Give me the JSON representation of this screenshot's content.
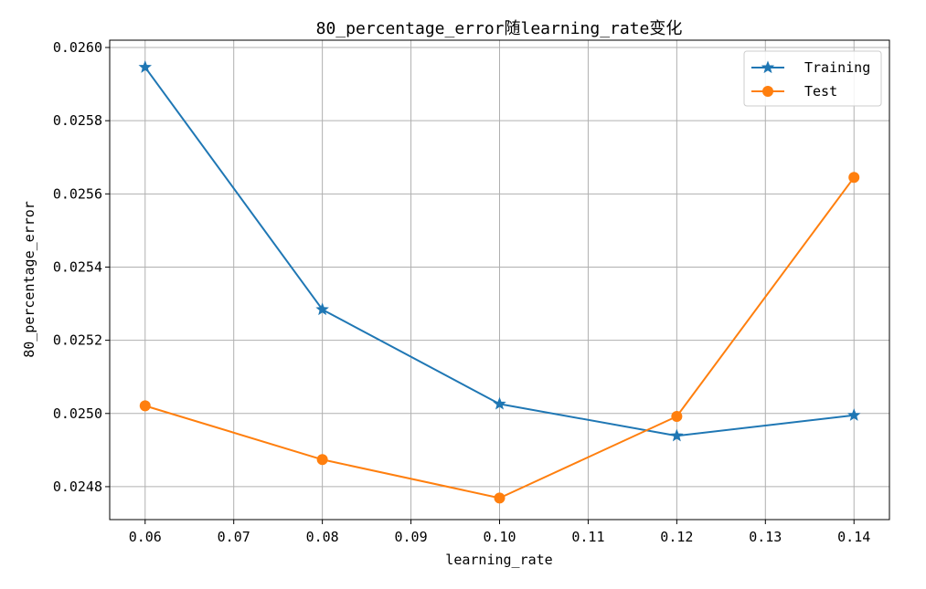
{
  "chart_data": {
    "type": "line",
    "title": "80_percentage_error随learning_rate变化",
    "xlabel": "learning_rate",
    "ylabel": "80_percentage_error",
    "x": [
      0.06,
      0.08,
      0.1,
      0.12,
      0.14
    ],
    "xlim": [
      0.056,
      0.144
    ],
    "ylim": [
      0.02471,
      0.02602
    ],
    "x_ticks": [
      0.06,
      0.07,
      0.08,
      0.09,
      0.1,
      0.11,
      0.12,
      0.13,
      0.14
    ],
    "x_tick_labels": [
      "0.06",
      "0.07",
      "0.08",
      "0.09",
      "0.10",
      "0.11",
      "0.12",
      "0.13",
      "0.14"
    ],
    "y_ticks": [
      0.0248,
      0.025,
      0.0252,
      0.0254,
      0.0256,
      0.0258,
      0.026
    ],
    "y_tick_labels": [
      "0.0248",
      "0.0250",
      "0.0252",
      "0.0254",
      "0.0256",
      "0.0258",
      "0.0260"
    ],
    "grid": true,
    "legend_position": "top-right",
    "series": [
      {
        "name": "Training",
        "color": "#1f77b4",
        "marker": "star",
        "values": [
          0.025946,
          0.025284,
          0.025026,
          0.024939,
          0.024995
        ]
      },
      {
        "name": "Test",
        "color": "#ff7f0e",
        "marker": "circle",
        "values": [
          0.025021,
          0.024874,
          0.024769,
          0.024992,
          0.025645
        ]
      }
    ]
  }
}
